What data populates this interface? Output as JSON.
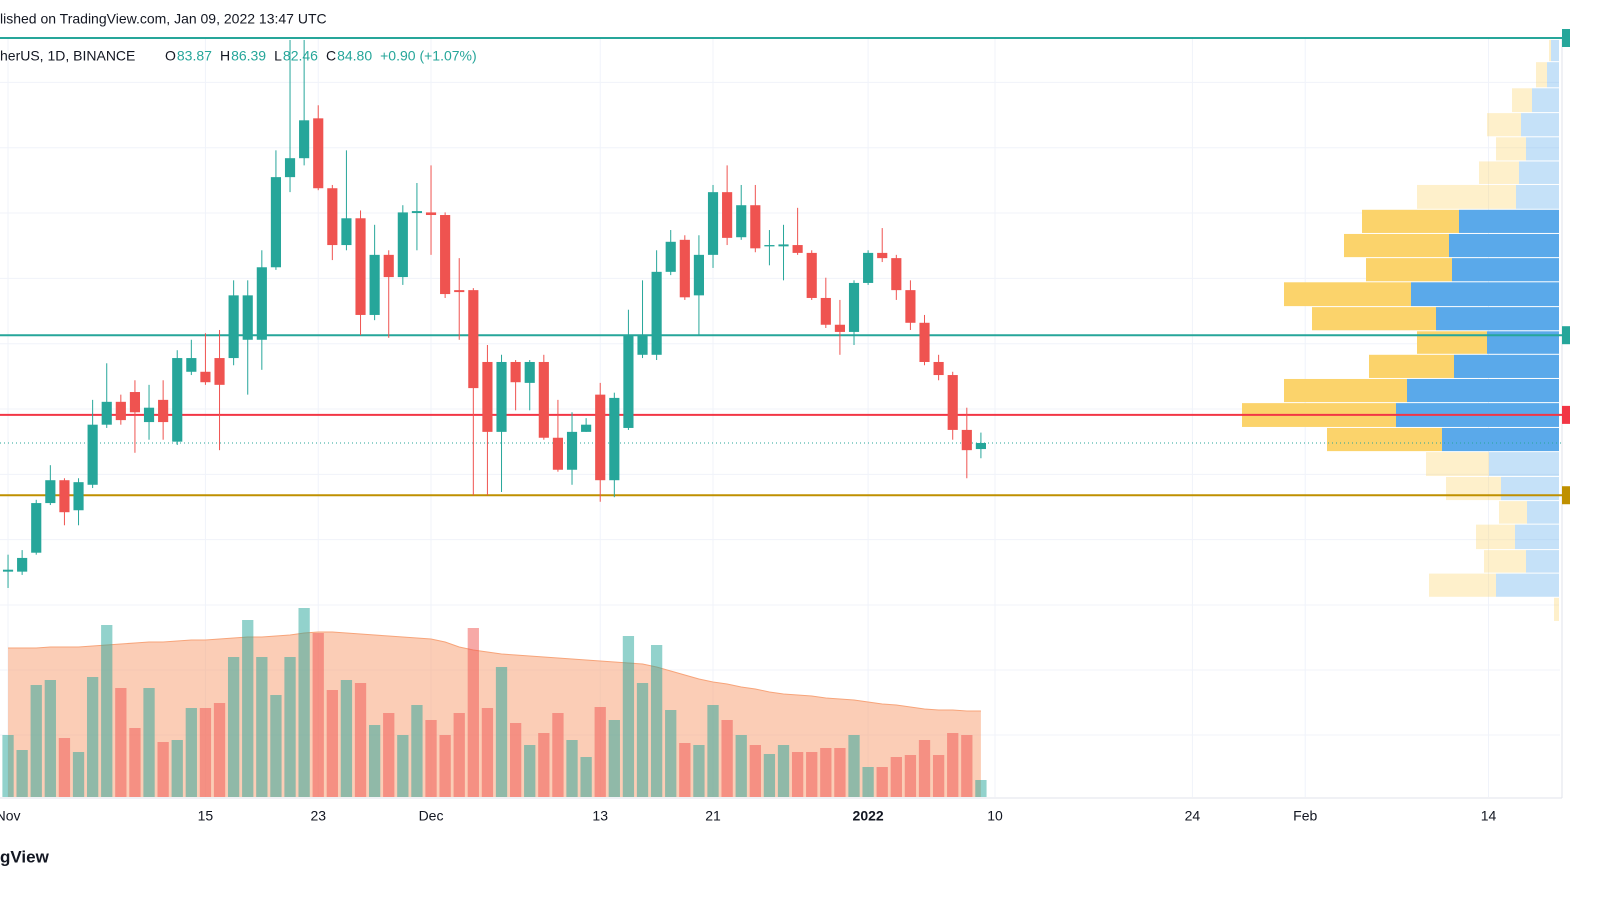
{
  "header": {
    "published": "lished on TradingView.com, Jan 09, 2022 13:47 UTC",
    "symbol": "herUS, 1D, BINANCE",
    "legend": [
      {
        "label": "O",
        "value": "83.87"
      },
      {
        "label": "H",
        "value": "86.39"
      },
      {
        "label": "L",
        "value": "82.46"
      },
      {
        "label": "C",
        "value": "84.80"
      }
    ],
    "change": "+0.90 (+1.07%)",
    "footer": "gView"
  },
  "chart_data": {
    "type": "candlestick",
    "up_color": "#26a69a",
    "down_color": "#ef5350",
    "open": [
      65.1,
      65.1,
      68.0,
      75.6,
      79.1,
      74.5,
      78.4,
      87.6,
      91.1,
      92.6,
      88.0,
      91.4,
      85.0,
      95.7,
      95.7,
      97.8,
      97.8,
      100.6,
      100.6,
      111.7,
      125.5,
      128.4,
      134.5,
      123.8,
      115.1,
      119.2,
      104.4,
      113.6,
      110.2,
      120.0,
      120.1,
      119.7,
      108.2,
      108.2,
      97.2,
      86.5,
      97.2,
      94.0,
      97.2,
      85.6,
      80.7,
      86.5,
      92.2,
      79.1,
      87.1,
      98.3,
      98.3,
      111.0,
      115.9,
      107.4,
      113.6,
      123.2,
      116.3,
      121.2,
      114.9,
      114.9,
      115.1,
      113.9,
      107.0,
      102.9,
      101.8,
      109.3,
      113.9,
      113.1,
      108.2,
      103.2,
      97.2,
      95.2,
      86.8,
      83.87
    ],
    "high": [
      67.7,
      68.4,
      76.1,
      81.4,
      79.4,
      79.4,
      91.4,
      97.0,
      92.2,
      94.4,
      93.7,
      94.4,
      99.0,
      100.6,
      101.6,
      102.1,
      109.7,
      109.7,
      114.3,
      129.6,
      146.5,
      146.5,
      136.5,
      124.3,
      129.6,
      120.4,
      118.2,
      114.3,
      121.2,
      124.6,
      127.3,
      120.1,
      113.1,
      108.5,
      99.8,
      98.3,
      97.5,
      97.5,
      98.3,
      91.4,
      89.5,
      88.6,
      94.0,
      92.5,
      105.2,
      109.7,
      114.3,
      117.4,
      116.6,
      116.6,
      124.3,
      127.3,
      124.3,
      124.3,
      117.4,
      118.2,
      120.8,
      114.3,
      110.1,
      106.7,
      109.7,
      114.3,
      117.7,
      113.6,
      109.7,
      104.4,
      98.3,
      95.7,
      90.2,
      86.39
    ],
    "low": [
      62.6,
      64.6,
      67.7,
      75.3,
      72.2,
      72.2,
      77.9,
      87.1,
      87.6,
      83.3,
      85.3,
      85.3,
      84.5,
      95.2,
      93.7,
      83.7,
      96.7,
      92.2,
      96.0,
      111.3,
      123.2,
      127.3,
      123.5,
      112.8,
      114.3,
      101.3,
      103.6,
      100.9,
      109.0,
      114.3,
      113.6,
      107.0,
      100.6,
      76.8,
      76.8,
      77.3,
      89.8,
      89.8,
      85.3,
      80.4,
      78.4,
      86.5,
      75.8,
      76.5,
      86.8,
      97.8,
      97.5,
      110.5,
      106.7,
      101.3,
      111.6,
      115.1,
      115.9,
      114.0,
      112.0,
      109.7,
      113.6,
      106.7,
      102.4,
      98.3,
      99.8,
      109.0,
      112.5,
      106.7,
      102.1,
      96.7,
      94.4,
      85.3,
      79.4,
      82.46
    ],
    "close": [
      65.4,
      67.2,
      75.6,
      79.1,
      74.2,
      78.8,
      87.6,
      91.1,
      88.3,
      89.5,
      90.2,
      88.0,
      97.8,
      97.8,
      94.1,
      93.7,
      107.4,
      107.4,
      111.7,
      125.5,
      128.4,
      134.2,
      123.8,
      115.1,
      119.2,
      104.4,
      113.6,
      110.2,
      120.1,
      120.3,
      119.7,
      107.6,
      107.9,
      93.2,
      86.5,
      97.2,
      94.1,
      97.2,
      85.6,
      80.7,
      86.5,
      87.6,
      79.1,
      91.7,
      101.3,
      101.3,
      111.0,
      115.6,
      107.1,
      113.6,
      123.2,
      116.2,
      121.2,
      114.6,
      115.1,
      115.2,
      113.9,
      107.0,
      102.9,
      101.8,
      109.3,
      113.9,
      113.1,
      108.2,
      103.2,
      97.2,
      95.2,
      86.8,
      83.7,
      84.8
    ],
    "xlim": [
      -0.57,
      110
    ],
    "ylim": [
      30.6,
      146.8
    ],
    "xticks": [
      {
        "value": 0,
        "label": "Nov"
      },
      {
        "value": 14,
        "label": "15"
      },
      {
        "value": 22,
        "label": "23"
      },
      {
        "value": 30,
        "label": "Dec"
      },
      {
        "value": 42,
        "label": "13"
      },
      {
        "value": 50,
        "label": "21"
      },
      {
        "value": 61,
        "label": "2022"
      },
      {
        "value": 70,
        "label": "10"
      },
      {
        "value": 84,
        "label": "24"
      },
      {
        "value": 92,
        "label": "Feb"
      },
      {
        "value": 105,
        "label": "14"
      }
    ],
    "price_grid": [
      60,
      70,
      80,
      90,
      100,
      110,
      120,
      130,
      140
    ],
    "levels": [
      {
        "value": 146.8,
        "color": "#26a69a"
      },
      {
        "value": 101.3,
        "color": "#26a69a"
      },
      {
        "value": 89.1,
        "color": "#f23645"
      },
      {
        "value": 76.8,
        "color": "#bf9000"
      }
    ],
    "volume": {
      "ylim": [
        0,
        190
      ],
      "ma_color": "#f7a47a",
      "values": [
        62,
        47,
        112,
        117,
        59,
        45,
        120,
        172,
        109,
        69,
        109,
        55,
        57,
        89,
        89,
        94,
        140,
        177,
        140,
        102,
        140,
        189,
        164,
        107,
        117,
        114,
        72,
        84,
        62,
        92,
        77,
        62,
        84,
        169,
        89,
        130,
        74,
        52,
        64,
        84,
        57,
        40,
        90,
        77,
        161,
        114,
        152,
        87,
        54,
        52,
        92,
        77,
        62,
        52,
        43,
        52,
        45,
        45,
        49,
        49,
        62,
        30,
        30,
        40,
        42,
        57,
        42,
        64,
        62,
        17
      ],
      "ma": [
        149,
        149,
        149,
        150,
        150,
        150,
        151,
        152,
        153,
        154,
        155,
        155,
        156,
        157,
        157,
        158,
        159,
        160,
        160,
        161,
        162,
        164,
        165,
        165,
        164,
        163,
        162,
        161,
        160,
        159,
        158,
        155,
        150,
        147,
        145,
        143,
        142,
        141,
        140,
        139,
        138,
        137,
        136,
        135,
        134,
        133,
        130,
        126,
        122,
        118,
        115,
        113,
        110,
        108,
        105,
        103,
        102,
        101,
        99,
        98,
        97,
        95,
        93,
        92,
        90,
        88,
        87,
        87,
        86,
        86
      ]
    },
    "volume_profile": {
      "xlim": [
        0,
        330
      ],
      "up_color": "#5aa9ea",
      "down_color": "#fbd36b",
      "value_area": [
        87.1,
        120.5
      ],
      "levels": [
        146.5,
        143.1,
        139.1,
        135.3,
        131.6,
        127.9,
        124.3,
        120.5,
        116.8,
        113.1,
        109.4,
        105.6,
        101.9,
        98.3,
        94.6,
        90.9,
        87.1,
        83.4,
        79.6,
        75.9,
        72.3,
        68.4,
        64.8,
        61.1
      ],
      "up": [
        8,
        12,
        27,
        38,
        33,
        40,
        43,
        100,
        110,
        107,
        148,
        123,
        72,
        105,
        152,
        163,
        117,
        70,
        58,
        32,
        44,
        33,
        63,
        0
      ],
      "down": [
        2,
        11,
        20,
        34,
        30,
        40,
        99,
        97,
        105,
        86,
        127,
        124,
        70,
        85,
        123,
        154,
        115,
        63,
        55,
        28,
        39,
        42,
        67,
        5
      ]
    }
  }
}
